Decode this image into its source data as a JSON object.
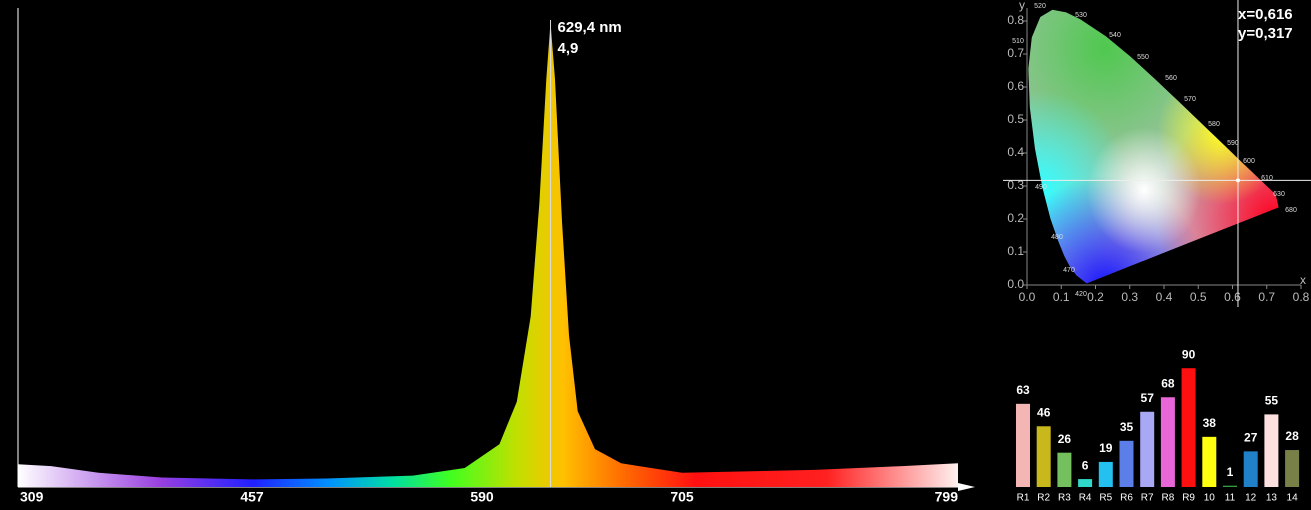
{
  "chart_data": [
    {
      "type": "area",
      "x": [
        309,
        330,
        360,
        400,
        457,
        500,
        550,
        580,
        600,
        610,
        618,
        623,
        627,
        629.4,
        632,
        636,
        640,
        645,
        655,
        670,
        705,
        750,
        780,
        799
      ],
      "values": [
        0.24,
        0.22,
        0.15,
        0.1,
        0.08,
        0.09,
        0.12,
        0.2,
        0.45,
        0.9,
        1.8,
        3.0,
        4.3,
        4.9,
        4.3,
        2.8,
        1.6,
        0.8,
        0.4,
        0.25,
        0.15,
        0.18,
        0.22,
        0.25
      ],
      "xlim": [
        309,
        799
      ],
      "xticks": [
        309,
        457,
        590,
        705,
        799
      ],
      "ylim": [
        0,
        5
      ],
      "peak": {
        "x": {
          "value": 629.4,
          "label": "629,4 nm"
        },
        "y": {
          "value": 4.9,
          "label": "4,9"
        }
      }
    },
    {
      "type": "chromaticity",
      "x_label": "x",
      "y_label": "y",
      "xlim": [
        0,
        0.8
      ],
      "ylim": [
        0,
        0.8
      ],
      "xticks": [
        {
          "value": 0,
          "label": "0.0"
        },
        {
          "value": 0.1,
          "label": "0.1"
        },
        {
          "value": 0.2,
          "label": "0.2"
        },
        {
          "value": 0.3,
          "label": "0.3"
        },
        {
          "value": 0.4,
          "label": "0.4"
        },
        {
          "value": 0.5,
          "label": "0.5"
        },
        {
          "value": 0.6,
          "label": "0.6"
        },
        {
          "value": 0.7,
          "label": "0.7"
        },
        {
          "value": 0.8,
          "label": "0.8"
        }
      ],
      "yticks": [
        {
          "value": 0,
          "label": "0.0"
        },
        {
          "value": 0.1,
          "label": "0.1"
        },
        {
          "value": 0.2,
          "label": "0.2"
        },
        {
          "value": 0.3,
          "label": "0.3"
        },
        {
          "value": 0.4,
          "label": "0.4"
        },
        {
          "value": 0.5,
          "label": "0.5"
        },
        {
          "value": 0.6,
          "label": "0.6"
        },
        {
          "value": 0.7,
          "label": "0.7"
        },
        {
          "value": 0.8,
          "label": "0.8"
        }
      ],
      "wavelength_labels": [
        520,
        530,
        540,
        550,
        560,
        570,
        580,
        590,
        600,
        610,
        630,
        680,
        420,
        470,
        480,
        490,
        510
      ],
      "point": {
        "x": {
          "value": 0.616,
          "label": "x=0,616"
        },
        "y": {
          "value": 0.317,
          "label": "y=0,317"
        }
      }
    },
    {
      "type": "bar",
      "ylim": [
        0,
        100
      ],
      "categories": [
        "R1",
        "R2",
        "R3",
        "R4",
        "R5",
        "R6",
        "R7",
        "R8",
        "R9",
        "10",
        "11",
        "12",
        "13",
        "14"
      ],
      "values": [
        63,
        46,
        26,
        6,
        19,
        35,
        57,
        68,
        90,
        38,
        1,
        27,
        55,
        28
      ],
      "colors": [
        "#f4b6b4",
        "#c8b81c",
        "#74c05e",
        "#2fd8c8",
        "#24c0f0",
        "#5c7ee8",
        "#a8a8f4",
        "#e866d8",
        "#ff1010",
        "#ffff10",
        "#30a040",
        "#2080c8",
        "#ffe0e0",
        "#788048"
      ]
    }
  ]
}
